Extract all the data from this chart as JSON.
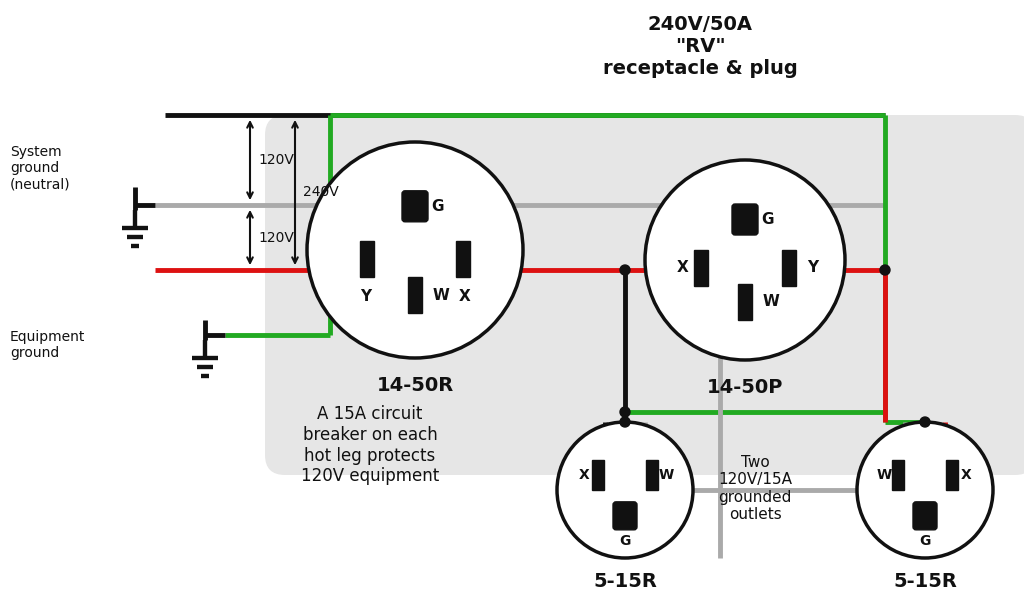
{
  "title": "240V/50A\n\"RV\"\nreceptacle & plug",
  "bg_color": "#ffffff",
  "panel_color": "#e6e6e6",
  "wire_black": "#111111",
  "wire_red": "#dd1111",
  "wire_green": "#22aa22",
  "wire_gray": "#aaaaaa",
  "label_1450R": "14-50R",
  "label_1450P": "14-50P",
  "label_515R": "5-15R",
  "text_system_ground": "System\nground\n(neutral)",
  "text_equipment_ground": "Equipment\nground",
  "text_120v_top": "120V",
  "text_120v_bot": "120V",
  "text_240v": "240V",
  "text_breaker": "A 15A circuit\nbreaker on each\nhot leg protects\n120V equipment",
  "text_two_outlets": "Two\n120V/15A\ngrounded\noutlets"
}
